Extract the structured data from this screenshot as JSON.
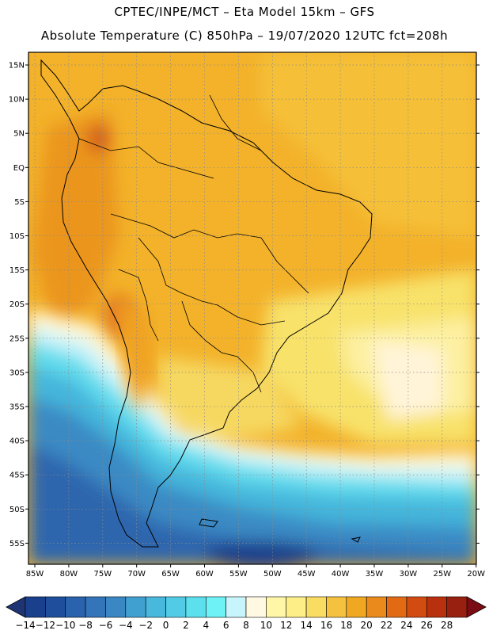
{
  "header": {
    "line1": "CPTEC/INPE/MCT –  Eta Model 15km – GFS",
    "line2": "Absolute Temperature (C) 850hPa – 19/07/2020 12UTC fct=208h"
  },
  "map": {
    "lat_labels": [
      "15N",
      "10N",
      "5N",
      "EQ",
      "5S",
      "10S",
      "15S",
      "20S",
      "25S",
      "30S",
      "35S",
      "40S",
      "45S",
      "50S",
      "55S"
    ],
    "lon_labels": [
      "85W",
      "80W",
      "75W",
      "70W",
      "65W",
      "60W",
      "55W",
      "50W",
      "45W",
      "40W",
      "35W",
      "30W",
      "25W",
      "20W"
    ],
    "grid": "dotted"
  },
  "colorbar": {
    "labels": [
      "-14",
      "-12",
      "-10",
      "-8",
      "-6",
      "-4",
      "-2",
      "0",
      "2",
      "4",
      "6",
      "8",
      "10",
      "12",
      "14",
      "16",
      "18",
      "20",
      "22",
      "24",
      "26",
      "28"
    ],
    "colors": [
      "#1a3f8c",
      "#1f4f9c",
      "#2a62ad",
      "#3474b9",
      "#3a87c3",
      "#40a0d0",
      "#48b8dc",
      "#52cce6",
      "#5de0ee",
      "#6ff2f6",
      "#c8f4fb",
      "#fff9e4",
      "#fff6a8",
      "#fdee88",
      "#f9dc62",
      "#f4c23e",
      "#f0a822",
      "#ea8a1c",
      "#e26a14",
      "#d24b10",
      "#b8300e",
      "#972010"
    ],
    "left_arrow_color": "#1e3473",
    "right_arrow_color": "#7a0c16"
  }
}
